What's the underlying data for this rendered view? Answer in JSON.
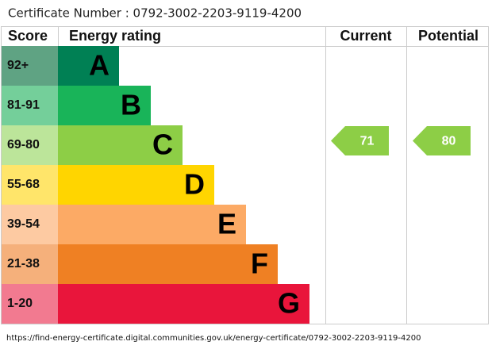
{
  "header": {
    "certificate": "Certificate Number : 0792-3002-2203-9119-4200"
  },
  "columns": {
    "score": "Score",
    "rating": "Energy rating",
    "current": "Current",
    "potential": "Potential"
  },
  "bands": [
    {
      "score": "92+",
      "letter": "A",
      "color": "#008054",
      "score_color": "#5fa383"
    },
    {
      "score": "81-91",
      "letter": "B",
      "color": "#19b459",
      "score_color": "#74cf9a"
    },
    {
      "score": "69-80",
      "letter": "C",
      "color": "#8dce46",
      "score_color": "#bce59a"
    },
    {
      "score": "55-68",
      "letter": "D",
      "color": "#ffd500",
      "score_color": "#ffe56a"
    },
    {
      "score": "39-54",
      "letter": "E",
      "color": "#fcaa65",
      "score_color": "#fdcaa2"
    },
    {
      "score": "21-38",
      "letter": "F",
      "color": "#ef8023",
      "score_color": "#f5b07b"
    },
    {
      "score": "1-20",
      "letter": "G",
      "color": "#e9153b",
      "score_color": "#f27a90"
    }
  ],
  "current": 71,
  "potential": 80,
  "footer": {
    "url": "https://find-energy-certificate.digital.communities.gov.uk/energy-certificate/0792-3002-2203-9119-4200"
  }
}
